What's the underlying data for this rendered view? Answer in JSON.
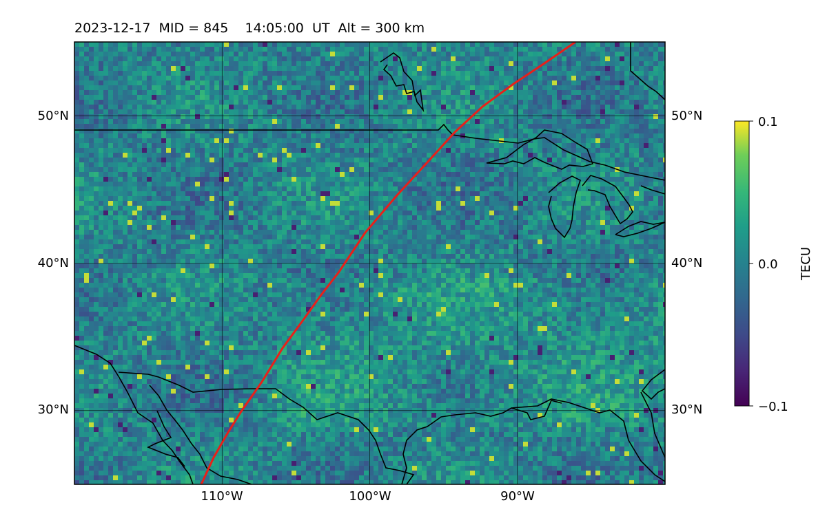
{
  "title": "2023-12-17  MID = 845    14:05:00  UT  Alt = 300 km",
  "map": {
    "lon_range": [
      -120,
      -80
    ],
    "lat_range": [
      25,
      55
    ],
    "lon_ticks": [
      -110,
      -100,
      -90
    ],
    "lat_ticks": [
      30,
      40,
      50
    ],
    "lon_tick_labels": [
      "110°W",
      "100°W",
      "90°W"
    ],
    "lat_tick_labels": [
      "30°N",
      "40°N",
      "50°N"
    ],
    "gridlines": true,
    "track_color": "#e8201a"
  },
  "colorbar": {
    "label": "TECU",
    "colormap": "viridis",
    "range": [
      -0.1,
      0.1
    ],
    "ticks": [
      {
        "value": 0.1,
        "label": "0.1"
      },
      {
        "value": 0.0,
        "label": "0.0"
      },
      {
        "value": -0.1,
        "label": "−0.1"
      }
    ]
  }
}
